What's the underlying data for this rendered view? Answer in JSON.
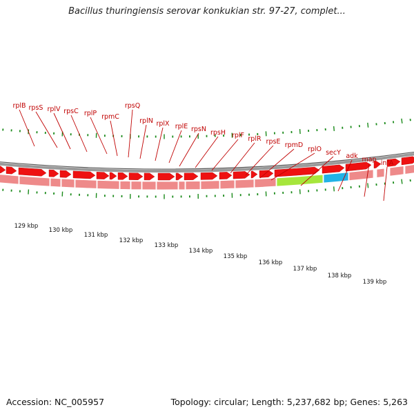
{
  "title": "Bacillus thuringiensis serovar konkukian str. 97-27, complet...",
  "footer": {
    "accession": "Accession: NC_005957",
    "stats": "Topology: circular; Length: 5,237,682 bp; Genes: 5,263"
  },
  "gene_labels": [
    "rplB",
    "rpsS",
    "rplV",
    "rpsC",
    "rplP",
    "rpmC",
    "rpsQ",
    "rplN",
    "rplX",
    "rplE",
    "rpsN",
    "rpsH",
    "rplF",
    "rplR",
    "rpsE",
    "rpmD",
    "rplO",
    "secY",
    "adk",
    "map",
    "infA"
  ],
  "kbp_labels": [
    "129 kbp",
    "130 kbp",
    "131 kbp",
    "132 kbp",
    "133 kbp",
    "134 kbp",
    "135 kbp",
    "136 kbp",
    "137 kbp",
    "138 kbp",
    "139 kbp"
  ],
  "colors": {
    "gene_label": "#c00000",
    "gene_arrow": "#ee1111",
    "rna_feature": "#ee8a8a",
    "green_feature": "#a6e63c",
    "blue_feature": "#22b2e6",
    "tick": "#1a8a1a",
    "backbone": "#777777"
  }
}
